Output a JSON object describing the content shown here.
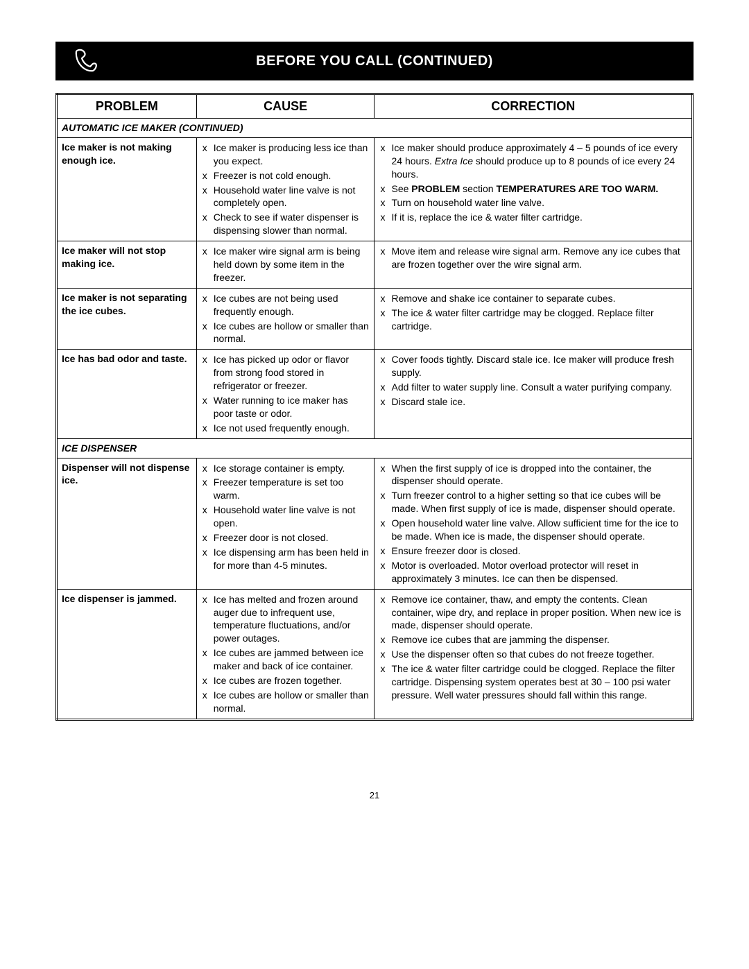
{
  "banner": {
    "title": "BEFORE YOU CALL (CONTINUED)"
  },
  "headers": {
    "problem": "PROBLEM",
    "cause": "CAUSE",
    "correction": "CORRECTION"
  },
  "page_number": "21",
  "colors": {
    "banner_bg": "#000000",
    "banner_fg": "#ffffff",
    "border": "#000000",
    "page_bg": "#ffffff"
  },
  "sections": [
    {
      "title": "AUTOMATIC ICE MAKER (CONTINUED)",
      "rows": [
        {
          "problem": "Ice maker is not making enough ice.",
          "causes": [
            [
              {
                "t": "Ice maker is producing less ice than you expect."
              }
            ],
            [
              {
                "t": "Freezer is not cold enough."
              }
            ],
            [
              {
                "t": "Household water line valve is not completely open."
              }
            ],
            [
              {
                "t": "Check to see if water dispenser is dispensing slower than normal."
              }
            ]
          ],
          "corrections": [
            [
              {
                "t": "Ice maker should produce approximately 4 – 5 pounds of ice every 24 hours. "
              },
              {
                "t": "Extra Ice",
                "i": true
              },
              {
                "t": " should produce up to 8 pounds of ice every 24 hours."
              }
            ],
            [
              {
                "t": "See "
              },
              {
                "t": "PROBLEM",
                "b": true
              },
              {
                "t": " section "
              },
              {
                "t": "TEMPERATURES ARE TOO WARM.",
                "b": true
              }
            ],
            [
              {
                "t": "Turn on household water line valve."
              }
            ],
            [
              {
                "t": "If it is, replace the ice & water filter cartridge."
              }
            ]
          ]
        },
        {
          "problem": "Ice maker will not stop making ice.",
          "causes": [
            [
              {
                "t": "Ice maker wire signal arm is being held down by some item in the freezer."
              }
            ]
          ],
          "corrections": [
            [
              {
                "t": "Move item and release wire signal arm. Remove any ice cubes that are frozen together over the wire signal arm."
              }
            ]
          ]
        },
        {
          "problem": "Ice maker is not separating the ice cubes.",
          "causes": [
            [
              {
                "t": "Ice cubes are not being used frequently enough."
              }
            ],
            [
              {
                "t": "Ice cubes are hollow or smaller than normal."
              }
            ]
          ],
          "corrections": [
            [
              {
                "t": "Remove and shake ice container to separate cubes."
              }
            ],
            [
              {
                "t": "The ice & water filter cartridge may be clogged. Replace filter cartridge."
              }
            ]
          ]
        },
        {
          "problem": "Ice has bad odor and taste.",
          "causes": [
            [
              {
                "t": "Ice has picked up odor or flavor from strong food stored in refrigerator or freezer."
              }
            ],
            [
              {
                "t": "Water running to ice maker has poor taste or odor."
              }
            ],
            [
              {
                "t": "Ice not used frequently enough."
              }
            ]
          ],
          "corrections": [
            [
              {
                "t": "Cover foods tightly. Discard stale ice. Ice maker will produce fresh supply."
              }
            ],
            [
              {
                "t": "Add filter to water supply line. Consult a water purifying company."
              }
            ],
            [
              {
                "t": "Discard stale ice."
              }
            ]
          ]
        }
      ]
    },
    {
      "title": "ICE DISPENSER",
      "rows": [
        {
          "problem": "Dispenser will not dispense ice.",
          "causes": [
            [
              {
                "t": "Ice storage container is empty."
              }
            ],
            [
              {
                "t": "Freezer temperature is set too warm."
              }
            ],
            [
              {
                "t": "Household water line valve is not open."
              }
            ],
            [
              {
                "t": "Freezer door is not closed."
              }
            ],
            [
              {
                "t": "Ice dispensing arm has been held in for more than 4-5 minutes."
              }
            ]
          ],
          "corrections": [
            [
              {
                "t": "When the first supply of ice is dropped into the container, the dispenser should operate."
              }
            ],
            [
              {
                "t": "Turn freezer control to a higher setting so that ice cubes will be made. When first supply of ice is made, dispenser should operate."
              }
            ],
            [
              {
                "t": "Open household water line valve. Allow sufficient time for the ice to be made. When ice is made, the dispenser should operate."
              }
            ],
            [
              {
                "t": "Ensure freezer door is closed."
              }
            ],
            [
              {
                "t": "Motor is overloaded. Motor overload protector will reset in approximately 3 minutes. Ice can then be dispensed."
              }
            ]
          ]
        },
        {
          "problem": "Ice dispenser is jammed.",
          "causes": [
            [
              {
                "t": "Ice has melted and frozen around auger due to infrequent use, temperature fluctuations, and/or power outages."
              }
            ],
            [
              {
                "t": "Ice cubes are jammed between ice maker and back of ice container."
              }
            ],
            [
              {
                "t": "Ice cubes are frozen together."
              }
            ],
            [
              {
                "t": "Ice cubes are hollow or smaller than normal."
              }
            ]
          ],
          "corrections": [
            [
              {
                "t": "Remove ice container, thaw, and empty the contents. Clean container, wipe dry, and replace in proper position. When new ice is made, dispenser should operate."
              }
            ],
            [
              {
                "t": "Remove ice cubes that are jamming the dispenser."
              }
            ],
            [
              {
                "t": "Use the dispenser often so that cubes do not freeze together."
              }
            ],
            [
              {
                "t": "The ice & water filter cartridge could be clogged. Replace the filter cartridge. Dispensing system operates best at 30 – 100 psi water pressure. Well water pressures should fall within this range."
              }
            ]
          ]
        }
      ]
    }
  ]
}
